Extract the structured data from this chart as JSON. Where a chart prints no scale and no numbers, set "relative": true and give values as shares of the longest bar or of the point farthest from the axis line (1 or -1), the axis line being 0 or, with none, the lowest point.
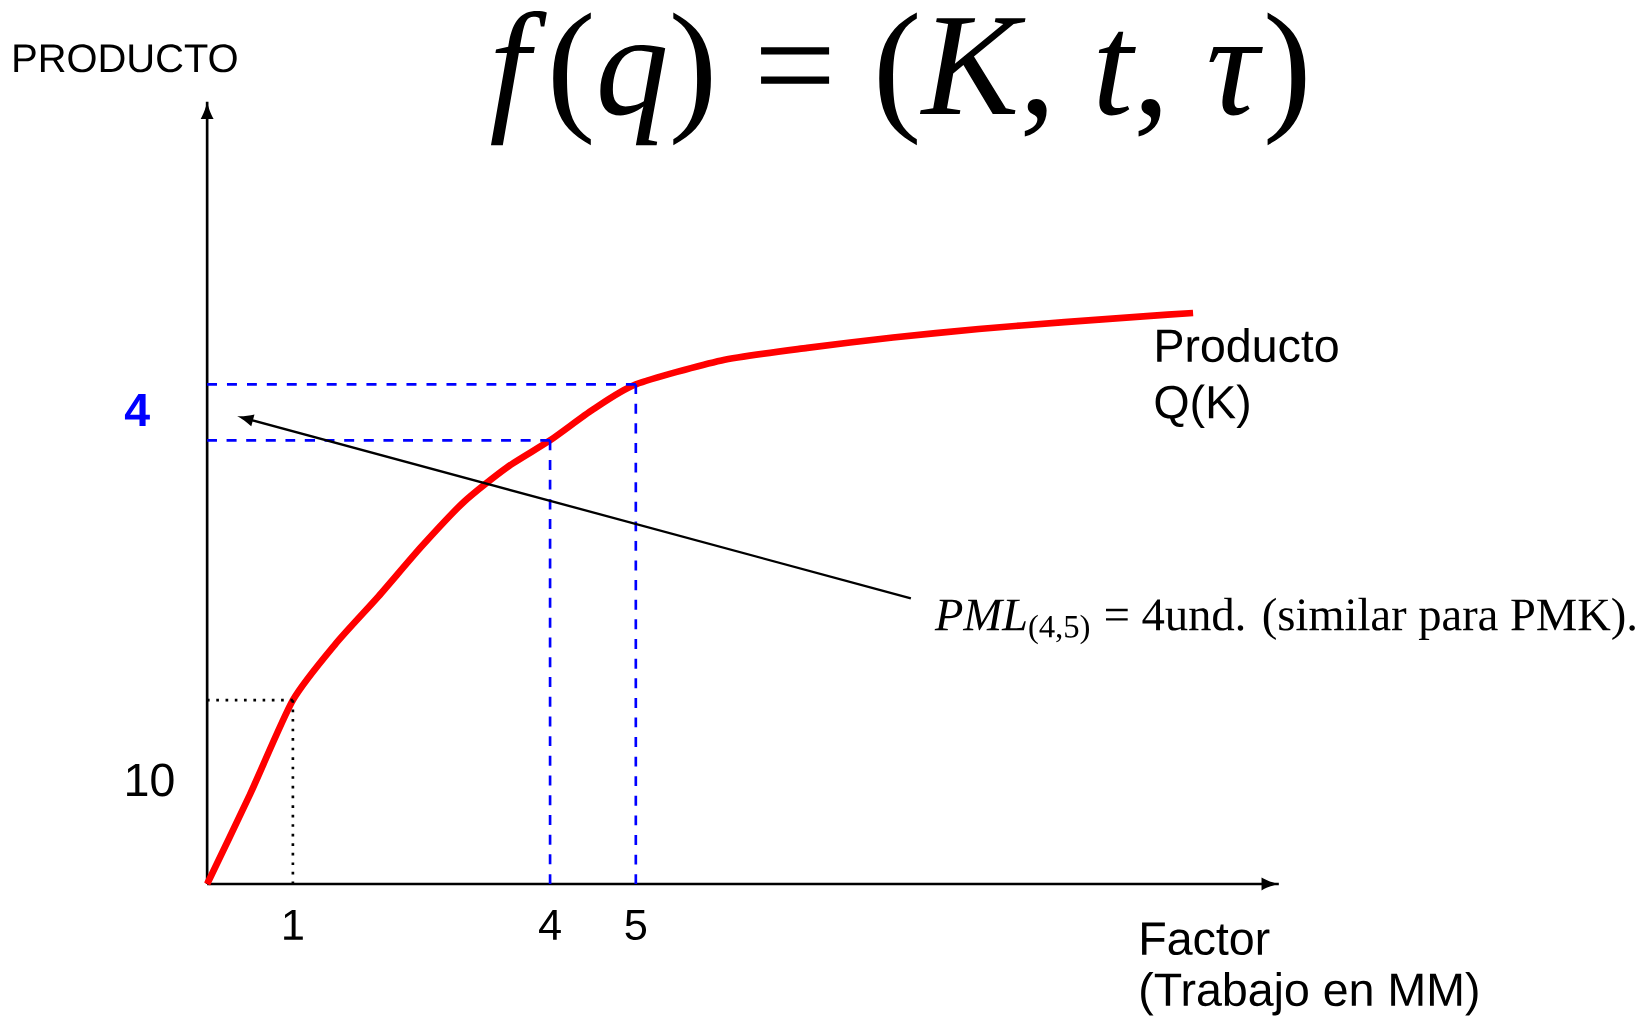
{
  "chart_data": {
    "type": "line",
    "title": "*f*(*q*) = (*K*, *t*, *τ*)",
    "xlabel": "Factor",
    "relative": true,
    "x": [
      0,
      0.5,
      1,
      1.5,
      2,
      2.5,
      3,
      3.5,
      4,
      4.5,
      5,
      6,
      7,
      8,
      9,
      10,
      11,
      11.5
    ],
    "xlim": [
      0,
      12.5
    ],
    "xticks": [
      1,
      4,
      5
    ],
    "series": [
      {
        "name": "Producto Q(K)",
        "color": "#ff0000",
        "values": [
          0,
          0.157,
          0.322,
          0.421,
          0.504,
          0.591,
          0.67,
          0.73,
          0.777,
          0.831,
          0.875,
          0.917,
          0.939,
          0.957,
          0.972,
          0.984,
          0.995,
          1.0
        ]
      },
      {
        "color": "#000000",
        "line_style": "dotted",
        "x": [
          1,
          1
        ],
        "values": [
          0,
          0.322
        ]
      },
      {
        "color": "#000000",
        "line_style": "dotted",
        "x": [
          0,
          1
        ],
        "values": [
          0.322,
          0.322
        ]
      },
      {
        "color": "#0000ff",
        "line_style": "dashed",
        "x": [
          4,
          4
        ],
        "values": [
          0,
          0.777
        ]
      },
      {
        "color": "#0000ff",
        "line_style": "dashed",
        "x": [
          0,
          4
        ],
        "values": [
          0.777,
          0.777
        ]
      },
      {
        "color": "#0000ff",
        "line_style": "dashed",
        "x": [
          5,
          5
        ],
        "values": [
          0,
          0.875
        ]
      },
      {
        "color": "#0000ff",
        "line_style": "dashed",
        "x": [
          0,
          5
        ],
        "values": [
          0.875,
          0.875
        ]
      }
    ],
    "annotations": [
      "4",
      "10",
      "(Trabajo en MM)",
      "*PML*$_{(4,5)}$ = 4und. (similar para PMK).",
      "PRODUCTO"
    ]
  }
}
